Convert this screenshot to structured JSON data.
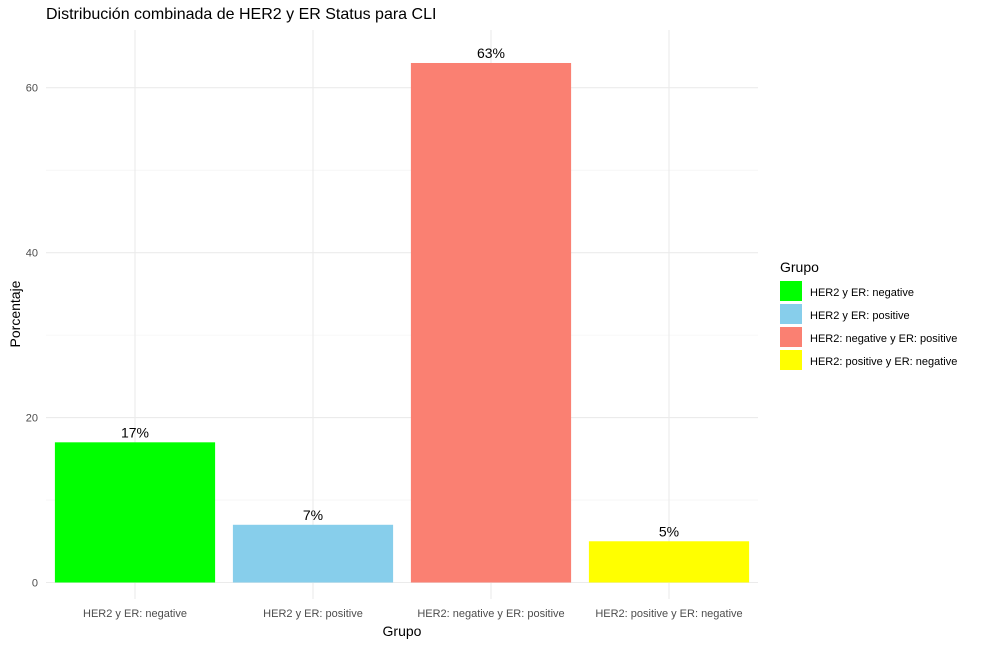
{
  "chart_data": {
    "type": "bar",
    "title": "Distribución combinada de HER2 y ER Status para CLI",
    "xlabel": "Grupo",
    "ylabel": "Porcentaje",
    "categories": [
      "HER2 y ER: negative",
      "HER2 y ER: positive",
      "HER2: negative y ER: positive",
      "HER2: positive y ER: negative"
    ],
    "values": [
      17,
      7,
      63,
      5
    ],
    "data_labels": [
      "17%",
      "7%",
      "63%",
      "5%"
    ],
    "colors": [
      "#00FF00",
      "#87CEEB",
      "#FA8072",
      "#FFFF00"
    ],
    "ylim": [
      -2,
      67
    ],
    "yticks": [
      0,
      20,
      40,
      60
    ],
    "grid": true,
    "legend": {
      "title": "Grupo",
      "position": "right",
      "entries": [
        "HER2 y ER: negative",
        "HER2 y ER: positive",
        "HER2: negative y ER: positive",
        "HER2: positive y ER: negative"
      ]
    }
  }
}
